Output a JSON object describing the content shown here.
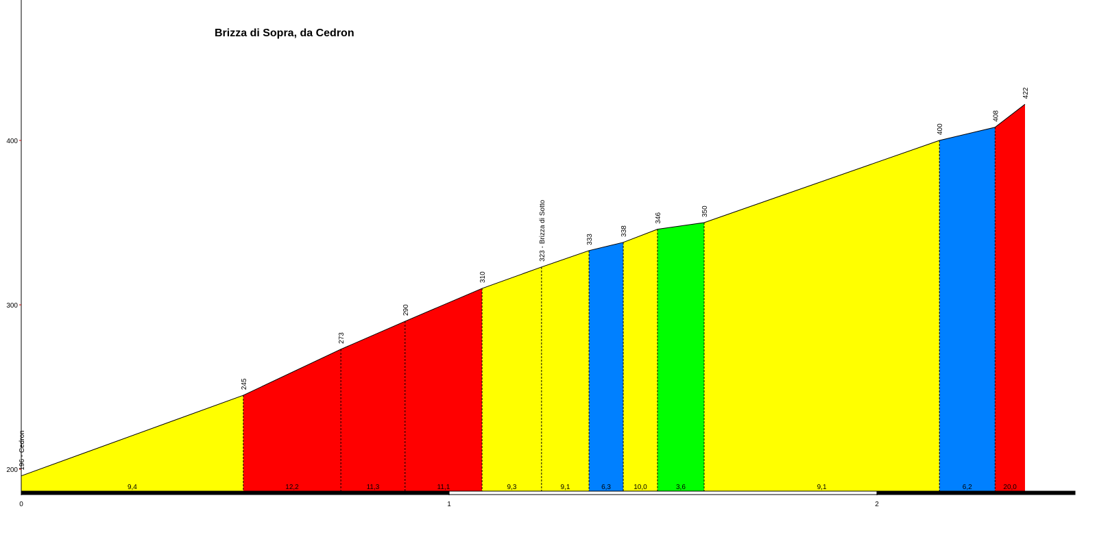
{
  "chart_data": {
    "type": "elevation-profile",
    "title": "Brizza di Sopra, da Cedron",
    "x": [
      0,
      0.519,
      0.747,
      0.897,
      1.077,
      1.216,
      1.327,
      1.407,
      1.487,
      1.596,
      2.146,
      2.276,
      2.346
    ],
    "values": [
      196,
      245,
      273,
      290,
      310,
      323,
      333,
      338,
      346,
      350,
      400,
      408,
      422
    ],
    "value_labels": [
      "196 - Cedron",
      "245",
      "273",
      "290",
      "310",
      "323 - Brizza di Sotto",
      "333",
      "338",
      "346",
      "350",
      "400",
      "408",
      "422"
    ],
    "segments": {
      "values": [
        9.4,
        12.2,
        11.3,
        11.1,
        9.3,
        9.1,
        6.3,
        10.0,
        3.6,
        9.1,
        6.2,
        20.0
      ],
      "value_labels": [
        "9,4",
        "12,2",
        "11,3",
        "11,1",
        "9,3",
        "9,1",
        "6,3",
        "10,0",
        "3,6",
        "9,1",
        "6,2",
        "20,0"
      ],
      "colors": [
        "#ffff00",
        "#ff0000",
        "#ff0000",
        "#ff0000",
        "#ffff00",
        "#ffff00",
        "#0080ff",
        "#ffff00",
        "#00ff00",
        "#ffff00",
        "#0080ff",
        "#ff0000"
      ]
    },
    "xlim": [
      0,
      2.463
    ],
    "xticks": [
      0,
      1,
      2
    ],
    "ylim": [
      186.7,
      485.4
    ],
    "yticks": [
      200,
      300,
      400
    ]
  }
}
